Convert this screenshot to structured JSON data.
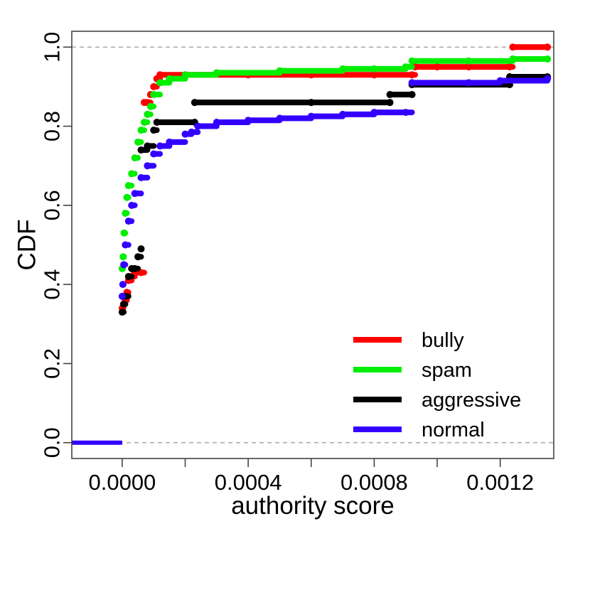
{
  "chart_data": {
    "type": "line",
    "title": "",
    "xlabel": "authority score",
    "ylabel": "CDF",
    "xlim": [
      -0.00016,
      0.00137
    ],
    "ylim": [
      -0.04,
      1.04
    ],
    "x_ticks": [
      0.0,
      0.0002,
      0.0004,
      0.0006,
      0.0008,
      0.001,
      0.0012
    ],
    "x_tick_labels": [
      "0.0000",
      "",
      "0.0004",
      "",
      "0.0008",
      "",
      "0.0012"
    ],
    "y_ticks": [
      0.0,
      0.2,
      0.4,
      0.6,
      0.8,
      1.0
    ],
    "y_tick_labels": [
      "0.0",
      "0.2",
      "0.4",
      "0.6",
      "0.8",
      "1.0"
    ],
    "reference_lines": [
      0.0,
      1.0
    ],
    "legend_position": "bottom-right",
    "series": [
      {
        "name": "bully",
        "color": "#ff0000",
        "points": [
          [
            0,
            0.34
          ],
          [
            4e-06,
            0.35
          ],
          [
            1e-05,
            0.36
          ],
          [
            1.5e-05,
            0.38
          ],
          [
            2e-05,
            0.41
          ],
          [
            3e-05,
            0.42
          ],
          [
            4e-05,
            0.43
          ],
          [
            6e-05,
            0.43
          ],
          [
            7e-05,
            0.86
          ],
          [
            8e-05,
            0.86
          ],
          [
            9e-05,
            0.88
          ],
          [
            0.0001,
            0.9
          ],
          [
            0.00011,
            0.92
          ],
          [
            0.00012,
            0.93
          ],
          [
            0.0002,
            0.93
          ],
          [
            0.0004,
            0.93
          ],
          [
            0.0006,
            0.93
          ],
          [
            0.0008,
            0.93
          ],
          [
            0.00092,
            0.93
          ],
          [
            0.00093,
            0.95
          ],
          [
            0.001,
            0.95
          ],
          [
            0.0011,
            0.95
          ],
          [
            0.00123,
            0.95
          ],
          [
            0.00124,
            1.0
          ],
          [
            0.00135,
            1.0
          ]
        ]
      },
      {
        "name": "spam",
        "color": "#00ee00",
        "points": [
          [
            0,
            0.44
          ],
          [
            3e-06,
            0.47
          ],
          [
            6e-06,
            0.53
          ],
          [
            1e-05,
            0.58
          ],
          [
            1.5e-05,
            0.62
          ],
          [
            2e-05,
            0.65
          ],
          [
            3e-05,
            0.68
          ],
          [
            4e-05,
            0.72
          ],
          [
            5e-05,
            0.76
          ],
          [
            6e-05,
            0.79
          ],
          [
            7e-05,
            0.81
          ],
          [
            8e-05,
            0.83
          ],
          [
            9e-05,
            0.85
          ],
          [
            0.0001,
            0.88
          ],
          [
            0.00012,
            0.91
          ],
          [
            0.00015,
            0.92
          ],
          [
            0.0002,
            0.93
          ],
          [
            0.0003,
            0.935
          ],
          [
            0.0005,
            0.94
          ],
          [
            0.0007,
            0.945
          ],
          [
            0.0008,
            0.945
          ],
          [
            0.0009,
            0.95
          ],
          [
            0.00092,
            0.965
          ],
          [
            0.0011,
            0.965
          ],
          [
            0.00124,
            0.97
          ],
          [
            0.00135,
            0.97
          ]
        ]
      },
      {
        "name": "aggressive",
        "color": "#000000",
        "points": [
          [
            0,
            0.33
          ],
          [
            5e-06,
            0.35
          ],
          [
            1e-05,
            0.37
          ],
          [
            2e-05,
            0.42
          ],
          [
            3e-05,
            0.44
          ],
          [
            4e-05,
            0.44
          ],
          [
            5e-05,
            0.47
          ],
          [
            6e-05,
            0.49
          ],
          [
            6e-05,
            0.74
          ],
          [
            8e-05,
            0.75
          ],
          [
            0.0001,
            0.79
          ],
          [
            0.00011,
            0.81
          ],
          [
            0.00023,
            0.81
          ],
          [
            0.00023,
            0.86
          ],
          [
            0.0006,
            0.86
          ],
          [
            0.00085,
            0.86
          ],
          [
            0.00085,
            0.88
          ],
          [
            0.00092,
            0.88
          ],
          [
            0.00092,
            0.905
          ],
          [
            0.00123,
            0.905
          ],
          [
            0.00123,
            0.925
          ],
          [
            0.00135,
            0.925
          ]
        ]
      },
      {
        "name": "normal",
        "color": "#3300ff",
        "points": [
          [
            0,
            0.37
          ],
          [
            2e-06,
            0.4
          ],
          [
            5e-06,
            0.45
          ],
          [
            1e-05,
            0.5
          ],
          [
            2e-05,
            0.56
          ],
          [
            3e-05,
            0.6
          ],
          [
            4e-05,
            0.63
          ],
          [
            6e-05,
            0.67
          ],
          [
            8e-05,
            0.7
          ],
          [
            0.0001,
            0.73
          ],
          [
            0.00012,
            0.75
          ],
          [
            0.00015,
            0.76
          ],
          [
            0.0002,
            0.78
          ],
          [
            0.00022,
            0.785
          ],
          [
            0.00024,
            0.8
          ],
          [
            0.0003,
            0.81
          ],
          [
            0.0004,
            0.815
          ],
          [
            0.0005,
            0.82
          ],
          [
            0.0006,
            0.825
          ],
          [
            0.0007,
            0.83
          ],
          [
            0.0008,
            0.835
          ],
          [
            0.0009,
            0.835
          ],
          [
            0.00092,
            0.91
          ],
          [
            0.0011,
            0.91
          ],
          [
            0.0012,
            0.915
          ],
          [
            0.00135,
            0.92
          ]
        ],
        "zero_segment": [
          [
            -0.00016,
            0.0
          ],
          [
            0,
            0.0
          ]
        ]
      }
    ]
  }
}
